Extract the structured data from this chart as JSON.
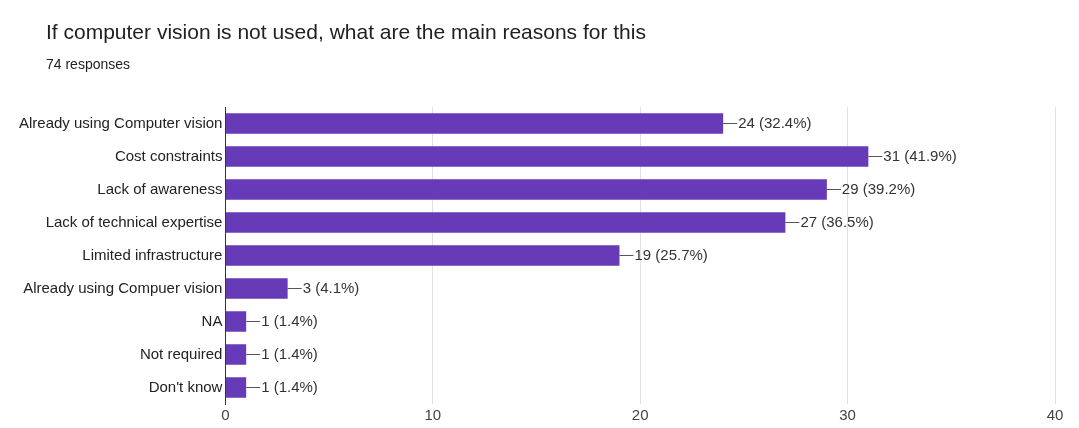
{
  "chart_data": {
    "type": "bar",
    "orientation": "horizontal",
    "title": "If computer vision is not used, what are the main reasons for this",
    "subtitle": "74 responses",
    "categories": [
      "Already using Computer vision",
      "Cost constraints",
      "Lack of awareness",
      "Lack of technical expertise",
      "Limited infrastructure",
      "Already using Compuer vision",
      "NA",
      "Not required",
      "Don't know"
    ],
    "values": [
      24,
      31,
      29,
      27,
      19,
      3,
      1,
      1,
      1
    ],
    "value_labels": [
      "24 (32.4%)",
      "31 (41.9%)",
      "29 (39.2%)",
      "27 (36.5%)",
      "19 (25.7%)",
      "3 (4.1%)",
      "1 (1.4%)",
      "1 (1.4%)",
      "1 (1.4%)"
    ],
    "color": "#673ab7",
    "xlim": [
      0,
      40
    ],
    "xticks": [
      0,
      10,
      20,
      30,
      40
    ],
    "grid": "x",
    "legend": false
  }
}
